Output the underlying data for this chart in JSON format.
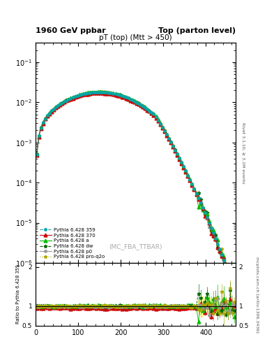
{
  "title_left": "1960 GeV ppbar",
  "title_right": "Top (parton level)",
  "main_title": "pT (top) (Mtt > 450)",
  "ylabel_ratio": "Ratio to Pythia 6.428 359",
  "right_label_top": "Rivet 3.1.10; ≥ 3.1M events",
  "right_label_bottom": "mcplots.cern.ch [arXiv:1306.3436]",
  "watermark": "(MC_FBA_TTBAR)",
  "legend_entries": [
    {
      "label": "Pythia 6.428 359",
      "color": "#00aaaa",
      "marker": "o",
      "linestyle": "--",
      "markersize": 2.5
    },
    {
      "label": "Pythia 6.428 370",
      "color": "#cc0000",
      "marker": "^",
      "linestyle": "-",
      "markersize": 3.5
    },
    {
      "label": "Pythia 6.428 a",
      "color": "#00bb00",
      "marker": "^",
      "linestyle": "-",
      "markersize": 3.5
    },
    {
      "label": "Pythia 6.428 dw",
      "color": "#006600",
      "marker": "*",
      "linestyle": "--",
      "markersize": 3.5
    },
    {
      "label": "Pythia 6.428 p0",
      "color": "#999999",
      "marker": "o",
      "linestyle": "-",
      "markersize": 2.5
    },
    {
      "label": "Pythia 6.428 pro-q2o",
      "color": "#aaaa00",
      "marker": "*",
      "linestyle": ":",
      "markersize": 3.5
    }
  ],
  "xlim": [
    0,
    470
  ],
  "ylim_main": [
    1e-06,
    0.3
  ],
  "ylim_ratio": [
    0.5,
    2.1
  ],
  "ref_band_color": "#ffff88"
}
